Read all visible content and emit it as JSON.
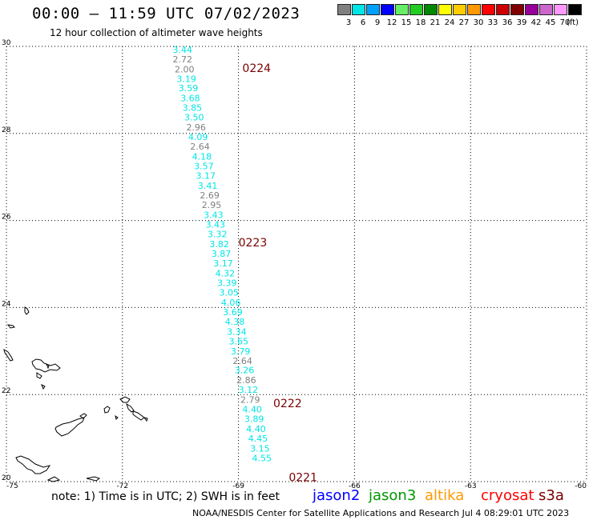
{
  "header": {
    "title": "00:00 — 11:59 UTC 07/02/2023",
    "subtitle": "12 hour collection of altimeter wave heights"
  },
  "legend": {
    "unit": "(ft)",
    "bins": [
      {
        "label": "3",
        "color": "#808080"
      },
      {
        "label": "6",
        "color": "#00e5e5"
      },
      {
        "label": "9",
        "color": "#00a0ff"
      },
      {
        "label": "12",
        "color": "#0000ff"
      },
      {
        "label": "15",
        "color": "#66ee66"
      },
      {
        "label": "18",
        "color": "#22cc22"
      },
      {
        "label": "21",
        "color": "#008800"
      },
      {
        "label": "24",
        "color": "#ffff00"
      },
      {
        "label": "27",
        "color": "#ffcc00"
      },
      {
        "label": "30",
        "color": "#ff9900"
      },
      {
        "label": "33",
        "color": "#ff0000"
      },
      {
        "label": "36",
        "color": "#cc0000"
      },
      {
        "label": "39",
        "color": "#800000"
      },
      {
        "label": "42",
        "color": "#990099"
      },
      {
        "label": "45",
        "color": "#cc66cc"
      },
      {
        "label": "70",
        "color": "#ff99ff"
      },
      {
        "label": "",
        "color": "#000000"
      }
    ]
  },
  "map": {
    "lat_ticks": [
      "30",
      "28",
      "26",
      "24",
      "22",
      "20"
    ],
    "lon_ticks": [
      "-75",
      "-72",
      "-69",
      "-66",
      "-63",
      "-60"
    ],
    "pass_labels": [
      {
        "text": "0224",
        "lon": -68.9,
        "lat": 29.5
      },
      {
        "text": "0223",
        "lon": -69.0,
        "lat": 25.5
      },
      {
        "text": "0222",
        "lon": -68.1,
        "lat": 21.8
      },
      {
        "text": "0221",
        "lon": -67.7,
        "lat": 20.1
      }
    ],
    "observations": [
      {
        "lon": -70.7,
        "lat": 29.93,
        "swh": "3.44",
        "color": "#00e5e5"
      },
      {
        "lon": -70.7,
        "lat": 29.71,
        "swh": "2.72",
        "color": "#808080"
      },
      {
        "lon": -70.65,
        "lat": 29.48,
        "swh": "2.00",
        "color": "#808080"
      },
      {
        "lon": -70.6,
        "lat": 29.26,
        "swh": "3.19",
        "color": "#00e5e5"
      },
      {
        "lon": -70.55,
        "lat": 29.04,
        "swh": "3.59",
        "color": "#00e5e5"
      },
      {
        "lon": -70.5,
        "lat": 28.81,
        "swh": "3.68",
        "color": "#00e5e5"
      },
      {
        "lon": -70.45,
        "lat": 28.59,
        "swh": "3.85",
        "color": "#00e5e5"
      },
      {
        "lon": -70.4,
        "lat": 28.37,
        "swh": "3.50",
        "color": "#00e5e5"
      },
      {
        "lon": -70.35,
        "lat": 28.14,
        "swh": "2.96",
        "color": "#808080"
      },
      {
        "lon": -70.3,
        "lat": 27.92,
        "swh": "4.09",
        "color": "#00e5e5"
      },
      {
        "lon": -70.25,
        "lat": 27.7,
        "swh": "2.64",
        "color": "#808080"
      },
      {
        "lon": -70.2,
        "lat": 27.47,
        "swh": "4.18",
        "color": "#00e5e5"
      },
      {
        "lon": -70.15,
        "lat": 27.25,
        "swh": "3.57",
        "color": "#00e5e5"
      },
      {
        "lon": -70.1,
        "lat": 27.03,
        "swh": "3.17",
        "color": "#00e5e5"
      },
      {
        "lon": -70.05,
        "lat": 26.8,
        "swh": "3.41",
        "color": "#00e5e5"
      },
      {
        "lon": -70.0,
        "lat": 26.58,
        "swh": "2.69",
        "color": "#808080"
      },
      {
        "lon": -69.95,
        "lat": 26.36,
        "swh": "2.95",
        "color": "#808080"
      },
      {
        "lon": -69.9,
        "lat": 26.13,
        "swh": "3.43",
        "color": "#00e5e5"
      },
      {
        "lon": -69.85,
        "lat": 25.91,
        "swh": "3.43",
        "color": "#00e5e5"
      },
      {
        "lon": -69.8,
        "lat": 25.69,
        "swh": "3.32",
        "color": "#00e5e5"
      },
      {
        "lon": -69.75,
        "lat": 25.46,
        "swh": "3.82",
        "color": "#00e5e5"
      },
      {
        "lon": -69.7,
        "lat": 25.24,
        "swh": "3.87",
        "color": "#00e5e5"
      },
      {
        "lon": -69.65,
        "lat": 25.02,
        "swh": "3.17",
        "color": "#00e5e5"
      },
      {
        "lon": -69.6,
        "lat": 24.79,
        "swh": "4.32",
        "color": "#00e5e5"
      },
      {
        "lon": -69.55,
        "lat": 24.57,
        "swh": "3.39",
        "color": "#00e5e5"
      },
      {
        "lon": -69.5,
        "lat": 24.35,
        "swh": "3.05",
        "color": "#00e5e5"
      },
      {
        "lon": -69.45,
        "lat": 24.12,
        "swh": "4.06",
        "color": "#00e5e5"
      },
      {
        "lon": -69.4,
        "lat": 23.9,
        "swh": "3.69",
        "color": "#00e5e5"
      },
      {
        "lon": -69.35,
        "lat": 23.68,
        "swh": "4.38",
        "color": "#00e5e5"
      },
      {
        "lon": -69.3,
        "lat": 23.45,
        "swh": "3.34",
        "color": "#00e5e5"
      },
      {
        "lon": -69.25,
        "lat": 23.23,
        "swh": "3.65",
        "color": "#00e5e5"
      },
      {
        "lon": -69.2,
        "lat": 23.0,
        "swh": "3.79",
        "color": "#00e5e5"
      },
      {
        "lon": -69.15,
        "lat": 22.78,
        "swh": "2.64",
        "color": "#808080"
      },
      {
        "lon": -69.1,
        "lat": 22.56,
        "swh": "3.26",
        "color": "#00e5e5"
      },
      {
        "lon": -69.05,
        "lat": 22.33,
        "swh": "2.86",
        "color": "#808080"
      },
      {
        "lon": -69.0,
        "lat": 22.11,
        "swh": "3.12",
        "color": "#00e5e5"
      },
      {
        "lon": -68.95,
        "lat": 21.88,
        "swh": "2.79",
        "color": "#808080"
      },
      {
        "lon": -68.9,
        "lat": 21.66,
        "swh": "4.40",
        "color": "#00e5e5"
      },
      {
        "lon": -68.85,
        "lat": 21.44,
        "swh": "3.89",
        "color": "#00e5e5"
      },
      {
        "lon": -68.8,
        "lat": 21.21,
        "swh": "4.40",
        "color": "#00e5e5"
      },
      {
        "lon": -68.75,
        "lat": 20.99,
        "swh": "4.45",
        "color": "#00e5e5"
      },
      {
        "lon": -68.7,
        "lat": 20.76,
        "swh": "3.15",
        "color": "#00e5e5"
      },
      {
        "lon": -68.65,
        "lat": 20.54,
        "swh": "4.55",
        "color": "#00e5e5"
      }
    ]
  },
  "footer": {
    "note": "note: 1) Time is in UTC; 2) SWH is in feet",
    "satellites": [
      {
        "name": "jason2",
        "color": "#0000ff"
      },
      {
        "name": "jason3",
        "color": "#009900"
      },
      {
        "name": "altika",
        "color": "#ff9900"
      },
      {
        "name": "cryosat",
        "color": "#ff0000"
      },
      {
        "name": "s3a",
        "color": "#7a0000"
      }
    ],
    "credit": "NOAA/NESDIS Center for Satellite Applications and Research    Jul  4 08:29:01 UTC 2023"
  }
}
